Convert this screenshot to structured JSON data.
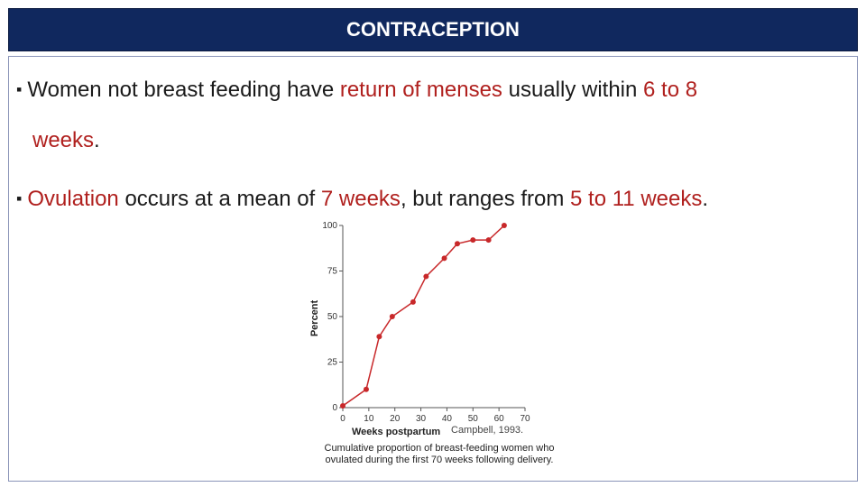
{
  "header": {
    "title": "CONTRACEPTION"
  },
  "bullets": {
    "b1": {
      "p1": "Women not breast feeding have ",
      "h1": "return of menses",
      "p2": " usually within ",
      "h2": "6 to 8",
      "h3": "weeks",
      "p3": "."
    },
    "b2": {
      "h1": "Ovulation",
      "p1": " occurs at a mean of ",
      "h2": "7 weeks",
      "p2": ", but ranges from ",
      "h3": "5 to 11 weeks",
      "p3": "."
    }
  },
  "colors": {
    "header_bg": "#10285e",
    "highlight": "#b0201e",
    "line": "#c8282a"
  },
  "chart_data": {
    "type": "line",
    "title": "",
    "xlabel": "Weeks postpartum",
    "ylabel": "Percent",
    "x": [
      0,
      9,
      14,
      19,
      27,
      32,
      39,
      44,
      50,
      56,
      62
    ],
    "values": [
      1,
      10,
      39,
      50,
      58,
      72,
      82,
      90,
      92,
      92,
      100
    ],
    "xlim": [
      0,
      70
    ],
    "ylim": [
      0,
      100
    ],
    "xticks": [
      0,
      10,
      20,
      30,
      40,
      50,
      60,
      70
    ],
    "yticks": [
      0,
      25,
      50,
      75,
      100
    ],
    "caption": "Cumulative proportion of breast-feeding women who ovulated during the first 70 weeks following delivery.",
    "credit": "Campbell, 1993."
  }
}
